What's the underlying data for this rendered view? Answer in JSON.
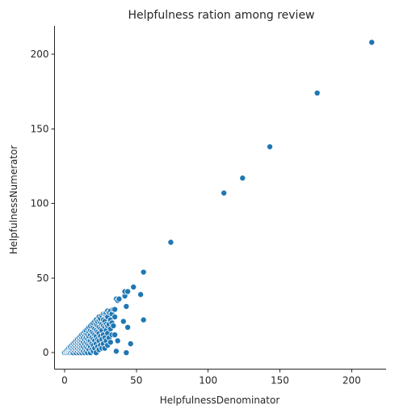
{
  "chart_data": {
    "type": "scatter",
    "title": "Helpfulness ration among review",
    "xlabel": "HelpfulnessDenominator",
    "ylabel": "HelpfulnessNumerator",
    "xlim": [
      -7,
      224
    ],
    "ylim": [
      -11,
      219
    ],
    "xticks": [
      0,
      50,
      100,
      150,
      200
    ],
    "yticks": [
      0,
      50,
      100,
      150,
      200
    ],
    "grid": false,
    "legend": "none",
    "color": "#1f77b4",
    "points": [
      {
        "x": 0,
        "y": 0
      },
      {
        "x": 1,
        "y": 0
      },
      {
        "x": 1,
        "y": 1
      },
      {
        "x": 2,
        "y": 0
      },
      {
        "x": 2,
        "y": 1
      },
      {
        "x": 2,
        "y": 2
      },
      {
        "x": 3,
        "y": 0
      },
      {
        "x": 3,
        "y": 1
      },
      {
        "x": 3,
        "y": 2
      },
      {
        "x": 3,
        "y": 3
      },
      {
        "x": 4,
        "y": 0
      },
      {
        "x": 4,
        "y": 2
      },
      {
        "x": 4,
        "y": 3
      },
      {
        "x": 4,
        "y": 4
      },
      {
        "x": 5,
        "y": 0
      },
      {
        "x": 5,
        "y": 1
      },
      {
        "x": 5,
        "y": 3
      },
      {
        "x": 5,
        "y": 5
      },
      {
        "x": 6,
        "y": 0
      },
      {
        "x": 6,
        "y": 2
      },
      {
        "x": 6,
        "y": 4
      },
      {
        "x": 6,
        "y": 6
      },
      {
        "x": 7,
        "y": 1
      },
      {
        "x": 7,
        "y": 3
      },
      {
        "x": 7,
        "y": 5
      },
      {
        "x": 7,
        "y": 7
      },
      {
        "x": 8,
        "y": 0
      },
      {
        "x": 8,
        "y": 2
      },
      {
        "x": 8,
        "y": 4
      },
      {
        "x": 8,
        "y": 6
      },
      {
        "x": 8,
        "y": 8
      },
      {
        "x": 9,
        "y": 1
      },
      {
        "x": 9,
        "y": 3
      },
      {
        "x": 9,
        "y": 5
      },
      {
        "x": 9,
        "y": 7
      },
      {
        "x": 9,
        "y": 9
      },
      {
        "x": 10,
        "y": 0
      },
      {
        "x": 10,
        "y": 2
      },
      {
        "x": 10,
        "y": 4
      },
      {
        "x": 10,
        "y": 6
      },
      {
        "x": 10,
        "y": 8
      },
      {
        "x": 10,
        "y": 10
      },
      {
        "x": 11,
        "y": 1
      },
      {
        "x": 11,
        "y": 3
      },
      {
        "x": 11,
        "y": 5
      },
      {
        "x": 11,
        "y": 7
      },
      {
        "x": 11,
        "y": 9
      },
      {
        "x": 11,
        "y": 11
      },
      {
        "x": 12,
        "y": 0
      },
      {
        "x": 12,
        "y": 2
      },
      {
        "x": 12,
        "y": 4
      },
      {
        "x": 12,
        "y": 6
      },
      {
        "x": 12,
        "y": 8
      },
      {
        "x": 12,
        "y": 10
      },
      {
        "x": 12,
        "y": 12
      },
      {
        "x": 13,
        "y": 1
      },
      {
        "x": 13,
        "y": 4
      },
      {
        "x": 13,
        "y": 7
      },
      {
        "x": 13,
        "y": 10
      },
      {
        "x": 13,
        "y": 13
      },
      {
        "x": 14,
        "y": 0
      },
      {
        "x": 14,
        "y": 3
      },
      {
        "x": 14,
        "y": 6
      },
      {
        "x": 14,
        "y": 9
      },
      {
        "x": 14,
        "y": 12
      },
      {
        "x": 14,
        "y": 14
      },
      {
        "x": 15,
        "y": 1
      },
      {
        "x": 15,
        "y": 4
      },
      {
        "x": 15,
        "y": 7
      },
      {
        "x": 15,
        "y": 10
      },
      {
        "x": 15,
        "y": 13
      },
      {
        "x": 15,
        "y": 15
      },
      {
        "x": 16,
        "y": 0
      },
      {
        "x": 16,
        "y": 3
      },
      {
        "x": 16,
        "y": 6
      },
      {
        "x": 16,
        "y": 9
      },
      {
        "x": 16,
        "y": 12
      },
      {
        "x": 16,
        "y": 16
      },
      {
        "x": 17,
        "y": 2
      },
      {
        "x": 17,
        "y": 5
      },
      {
        "x": 17,
        "y": 8
      },
      {
        "x": 17,
        "y": 11
      },
      {
        "x": 17,
        "y": 14
      },
      {
        "x": 17,
        "y": 17
      },
      {
        "x": 18,
        "y": 0
      },
      {
        "x": 18,
        "y": 4
      },
      {
        "x": 18,
        "y": 8
      },
      {
        "x": 18,
        "y": 12
      },
      {
        "x": 18,
        "y": 15
      },
      {
        "x": 18,
        "y": 18
      },
      {
        "x": 19,
        "y": 2
      },
      {
        "x": 19,
        "y": 6
      },
      {
        "x": 19,
        "y": 10
      },
      {
        "x": 19,
        "y": 14
      },
      {
        "x": 19,
        "y": 19
      },
      {
        "x": 20,
        "y": 1
      },
      {
        "x": 20,
        "y": 5
      },
      {
        "x": 20,
        "y": 9
      },
      {
        "x": 20,
        "y": 13
      },
      {
        "x": 20,
        "y": 17
      },
      {
        "x": 20,
        "y": 20
      },
      {
        "x": 21,
        "y": 3
      },
      {
        "x": 21,
        "y": 8
      },
      {
        "x": 21,
        "y": 12
      },
      {
        "x": 21,
        "y": 16
      },
      {
        "x": 21,
        "y": 21
      },
      {
        "x": 22,
        "y": 0
      },
      {
        "x": 22,
        "y": 6
      },
      {
        "x": 22,
        "y": 11
      },
      {
        "x": 22,
        "y": 15
      },
      {
        "x": 22,
        "y": 19
      },
      {
        "x": 22,
        "y": 22
      },
      {
        "x": 23,
        "y": 4
      },
      {
        "x": 23,
        "y": 9
      },
      {
        "x": 23,
        "y": 14
      },
      {
        "x": 23,
        "y": 18
      },
      {
        "x": 23,
        "y": 21
      },
      {
        "x": 24,
        "y": 2
      },
      {
        "x": 24,
        "y": 8
      },
      {
        "x": 24,
        "y": 13
      },
      {
        "x": 24,
        "y": 17
      },
      {
        "x": 24,
        "y": 22
      },
      {
        "x": 24,
        "y": 24
      },
      {
        "x": 25,
        "y": 5
      },
      {
        "x": 25,
        "y": 11
      },
      {
        "x": 25,
        "y": 16
      },
      {
        "x": 25,
        "y": 20
      },
      {
        "x": 25,
        "y": 23
      },
      {
        "x": 26,
        "y": 3
      },
      {
        "x": 26,
        "y": 9
      },
      {
        "x": 26,
        "y": 15
      },
      {
        "x": 26,
        "y": 19
      },
      {
        "x": 26,
        "y": 25
      },
      {
        "x": 27,
        "y": 6
      },
      {
        "x": 27,
        "y": 12
      },
      {
        "x": 27,
        "y": 18
      },
      {
        "x": 27,
        "y": 22
      },
      {
        "x": 27,
        "y": 26
      },
      {
        "x": 28,
        "y": 3
      },
      {
        "x": 28,
        "y": 10
      },
      {
        "x": 28,
        "y": 17
      },
      {
        "x": 28,
        "y": 21
      },
      {
        "x": 28,
        "y": 26
      },
      {
        "x": 29,
        "y": 8
      },
      {
        "x": 29,
        "y": 15
      },
      {
        "x": 29,
        "y": 19
      },
      {
        "x": 29,
        "y": 25
      },
      {
        "x": 29,
        "y": 27
      },
      {
        "x": 30,
        "y": 5
      },
      {
        "x": 30,
        "y": 13
      },
      {
        "x": 30,
        "y": 18
      },
      {
        "x": 30,
        "y": 24
      },
      {
        "x": 30,
        "y": 28
      },
      {
        "x": 31,
        "y": 10
      },
      {
        "x": 31,
        "y": 19
      },
      {
        "x": 31,
        "y": 27
      },
      {
        "x": 32,
        "y": 7
      },
      {
        "x": 32,
        "y": 16
      },
      {
        "x": 32,
        "y": 22
      },
      {
        "x": 32,
        "y": 28
      },
      {
        "x": 33,
        "y": 12
      },
      {
        "x": 33,
        "y": 20
      },
      {
        "x": 33,
        "y": 26
      },
      {
        "x": 34,
        "y": 18
      },
      {
        "x": 34,
        "y": 29
      },
      {
        "x": 35,
        "y": 12
      },
      {
        "x": 35,
        "y": 24
      },
      {
        "x": 35,
        "y": 29
      },
      {
        "x": 36,
        "y": 1
      },
      {
        "x": 36,
        "y": 36
      },
      {
        "x": 37,
        "y": 35
      },
      {
        "x": 37,
        "y": 8
      },
      {
        "x": 38,
        "y": 36
      },
      {
        "x": 41,
        "y": 21
      },
      {
        "x": 42,
        "y": 38
      },
      {
        "x": 42,
        "y": 41
      },
      {
        "x": 43,
        "y": 0
      },
      {
        "x": 43,
        "y": 31
      },
      {
        "x": 44,
        "y": 17
      },
      {
        "x": 44,
        "y": 41
      },
      {
        "x": 46,
        "y": 6
      },
      {
        "x": 48,
        "y": 44
      },
      {
        "x": 53,
        "y": 39
      },
      {
        "x": 55,
        "y": 22
      },
      {
        "x": 55,
        "y": 54
      },
      {
        "x": 74,
        "y": 74
      },
      {
        "x": 111,
        "y": 107
      },
      {
        "x": 124,
        "y": 117
      },
      {
        "x": 143,
        "y": 138
      },
      {
        "x": 176,
        "y": 174
      },
      {
        "x": 214,
        "y": 208
      }
    ]
  }
}
